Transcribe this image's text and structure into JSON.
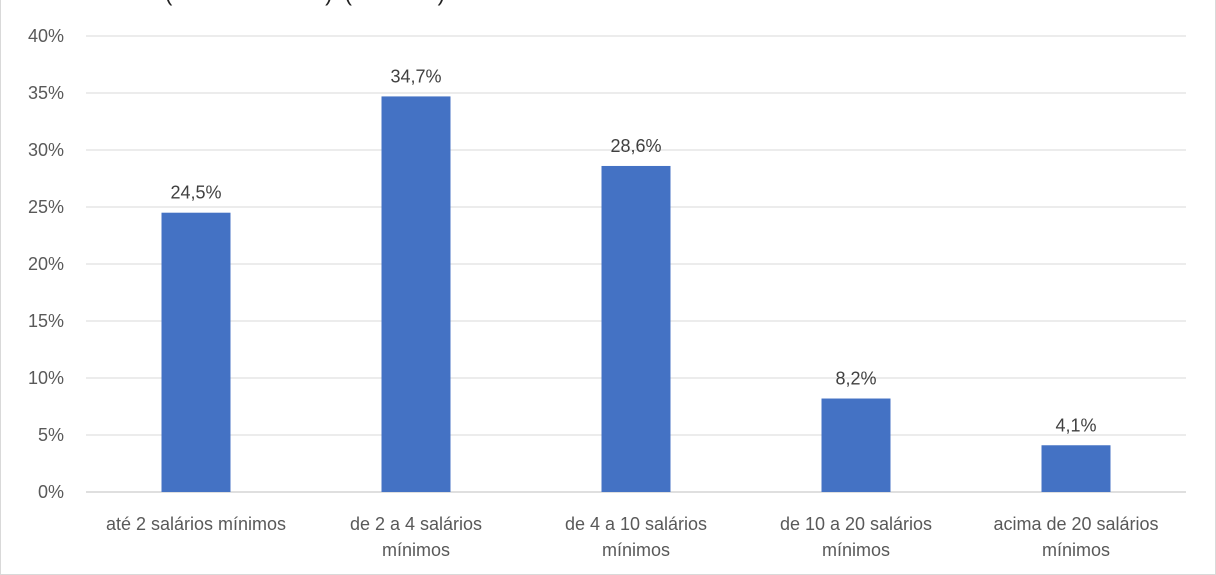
{
  "chart_data": {
    "type": "bar",
    "title": "",
    "top_text_fragment": "(                         )  (              )",
    "xlabel": "",
    "ylabel": "",
    "ylim": [
      0,
      40
    ],
    "yticks": [
      "0%",
      "5%",
      "10%",
      "15%",
      "20%",
      "25%",
      "30%",
      "35%",
      "40%"
    ],
    "grid": true,
    "legend": "none",
    "bar_color": "#4472c4",
    "categories": [
      [
        "até 2 salários mínimos"
      ],
      [
        "de 2 a 4 salários",
        "mínimos"
      ],
      [
        "de 4 a 10 salários",
        "mínimos"
      ],
      [
        "de 10 a 20 salários",
        "mínimos"
      ],
      [
        "acima de 20 salários",
        "mínimos"
      ]
    ],
    "values": [
      24.5,
      34.7,
      28.6,
      8.2,
      4.1
    ],
    "data_labels": [
      "24,5%",
      "34,7%",
      "28,6%",
      "8,2%",
      "4,1%"
    ]
  }
}
